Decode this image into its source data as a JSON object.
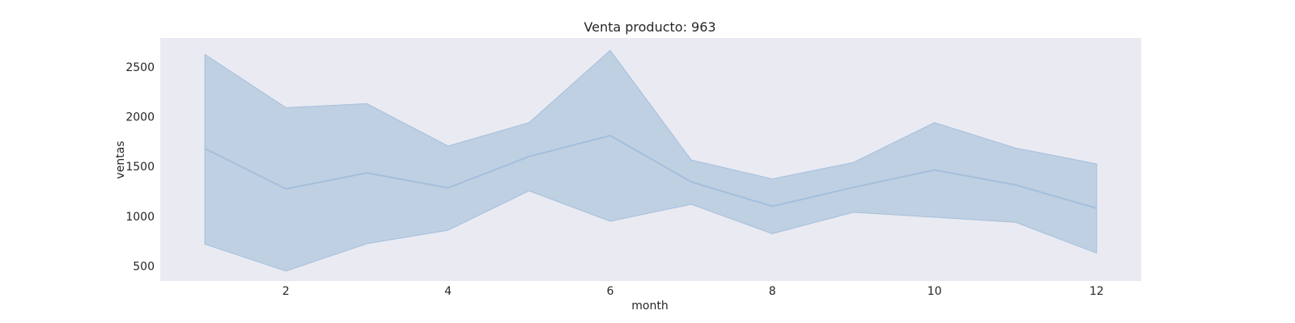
{
  "chart_data": {
    "type": "line",
    "title": "Venta producto: 963",
    "xlabel": "month",
    "ylabel": "ventas",
    "x": [
      1,
      2,
      3,
      4,
      5,
      6,
      7,
      8,
      9,
      10,
      11,
      12
    ],
    "series": [
      {
        "values": [
          1680,
          1275,
          1435,
          1285,
          1600,
          1810,
          1345,
          1100,
          1290,
          1465,
          1315,
          1080
        ],
        "upper": [
          2625,
          2090,
          2130,
          1705,
          1940,
          2665,
          1565,
          1375,
          1540,
          1940,
          1685,
          1525
        ],
        "lower": [
          720,
          450,
          725,
          860,
          1255,
          950,
          1120,
          825,
          1040,
          990,
          940,
          630
        ]
      }
    ],
    "xticks": [
      2,
      4,
      6,
      8,
      10,
      12
    ],
    "yticks": [
      500,
      1000,
      1500,
      2000,
      2500
    ],
    "xlim": [
      0.45,
      12.55
    ],
    "ylim": [
      350,
      2790
    ],
    "grid": false,
    "colors": {
      "line": "#a4bfdb",
      "band": "#bfd0e3",
      "plot_background": "#eaeaf2",
      "text": "#262626"
    }
  }
}
